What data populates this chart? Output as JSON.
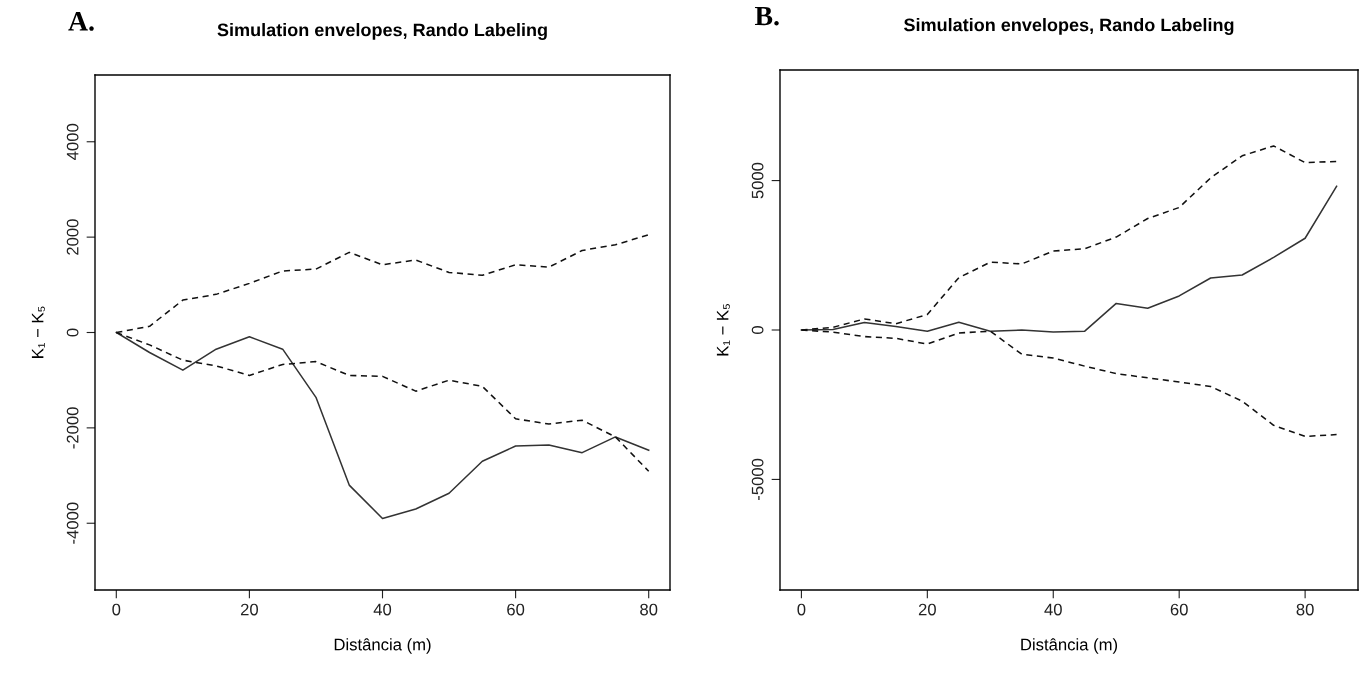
{
  "chart_data": [
    {
      "type": "line",
      "title": "Simulation envelopes, Rando Labeling",
      "xlabel": "Distância (m)",
      "ylabel": "K₁ − K₅",
      "annotations": [
        "A."
      ],
      "x": [
        0,
        5,
        10,
        15,
        20,
        25,
        30,
        35,
        40,
        45,
        50,
        55,
        60,
        65,
        70,
        75,
        80
      ],
      "xlim": [
        -3.2,
        83.2
      ],
      "xticks": [
        0,
        20,
        40,
        60,
        80
      ],
      "ylim": [
        -5400,
        5400
      ],
      "yticks": [
        -4000,
        -2000,
        0,
        2000,
        4000
      ],
      "grid": false,
      "series": [
        {
          "color": "#333333",
          "line_style": "solid",
          "values": [
            0,
            -420,
            -790,
            -350,
            -90,
            -350,
            -1360,
            -3200,
            -3900,
            -3700,
            -3370,
            -2700,
            -2380,
            -2360,
            -2520,
            -2190,
            -2470
          ]
        },
        {
          "color": "#111111",
          "line_style": "dashed",
          "values": [
            0,
            130,
            680,
            800,
            1030,
            1290,
            1330,
            1680,
            1420,
            1520,
            1260,
            1200,
            1420,
            1370,
            1720,
            1840,
            2050
          ]
        },
        {
          "color": "#111111",
          "line_style": "dashed",
          "values": [
            0,
            -260,
            -580,
            -700,
            -900,
            -670,
            -610,
            -900,
            -920,
            -1230,
            -1000,
            -1130,
            -1810,
            -1920,
            -1840,
            -2190,
            -2910
          ]
        }
      ]
    },
    {
      "type": "line",
      "title": "Simulation envelopes, Rando Labeling",
      "xlabel": "Distância (m)",
      "ylabel": "K₁ − K₅",
      "annotations": [
        "B."
      ],
      "x": [
        0,
        5,
        10,
        15,
        20,
        25,
        30,
        35,
        40,
        45,
        50,
        55,
        60,
        65,
        70,
        75,
        80,
        85
      ],
      "xlim": [
        -3.4,
        88.4
      ],
      "xticks": [
        0,
        20,
        40,
        60,
        80
      ],
      "ylim": [
        -8700,
        8700
      ],
      "yticks": [
        -5000,
        0,
        5000
      ],
      "grid": false,
      "series": [
        {
          "color": "#333333",
          "line_style": "solid",
          "values": [
            0,
            20,
            250,
            120,
            -40,
            260,
            -40,
            0,
            -70,
            -40,
            890,
            730,
            1140,
            1740,
            1840,
            2430,
            3070,
            4810
          ]
        },
        {
          "color": "#111111",
          "line_style": "dashed",
          "values": [
            0,
            90,
            370,
            210,
            520,
            1750,
            2270,
            2210,
            2640,
            2720,
            3110,
            3730,
            4100,
            5090,
            5830,
            6160,
            5600,
            5640
          ]
        },
        {
          "color": "#111111",
          "line_style": "dashed",
          "values": [
            0,
            -70,
            -220,
            -280,
            -470,
            -100,
            -40,
            -810,
            -940,
            -1210,
            -1460,
            -1600,
            -1740,
            -1890,
            -2380,
            -3190,
            -3560,
            -3500
          ]
        }
      ]
    }
  ]
}
